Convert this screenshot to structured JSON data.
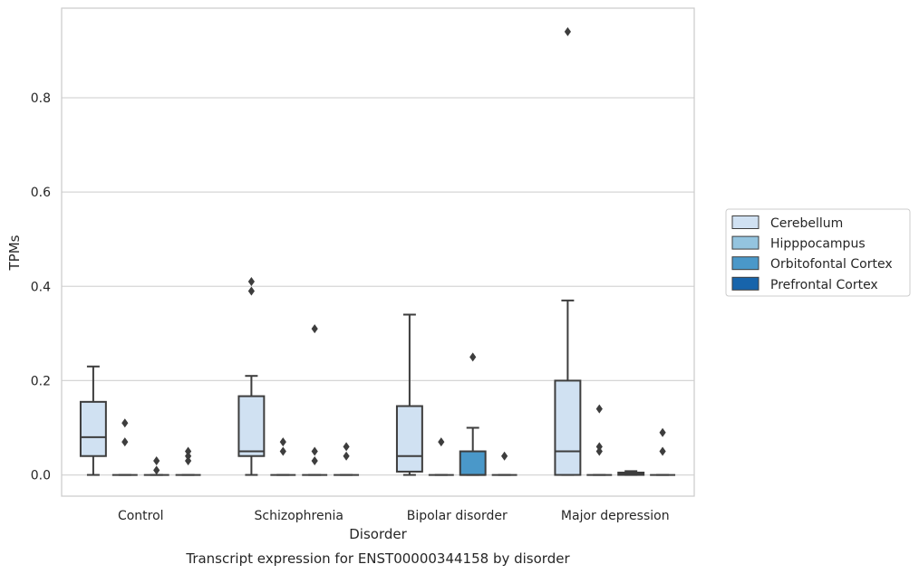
{
  "chart_data": {
    "type": "boxplot",
    "title": "Transcript expression for ENST00000344158 by disorder",
    "xlabel": "Disorder",
    "ylabel": "TPMs",
    "ylim": [
      -0.045,
      0.99
    ],
    "yticks": [
      0.0,
      0.2,
      0.4,
      0.6,
      0.8
    ],
    "ytick_labels": [
      "0.0",
      "0.2",
      "0.4",
      "0.6",
      "0.8"
    ],
    "grid": "horizontal",
    "legend_position": "right",
    "categories": [
      "Control",
      "Schizophrenia",
      "Bipolar disorder",
      "Major depression"
    ],
    "series": [
      {
        "name": "Cerebellum",
        "color": "#d0e1f2",
        "boxes": [
          {
            "whislo": 0.0,
            "q1": 0.04,
            "med": 0.08,
            "q3": 0.155,
            "whishi": 0.23,
            "fliers": []
          },
          {
            "whislo": 0.0,
            "q1": 0.04,
            "med": 0.05,
            "q3": 0.167,
            "whishi": 0.21,
            "fliers": [
              0.41,
              0.39
            ]
          },
          {
            "whislo": 0.0,
            "q1": 0.007,
            "med": 0.04,
            "q3": 0.146,
            "whishi": 0.34,
            "fliers": []
          },
          {
            "whislo": 0.0,
            "q1": 0.0,
            "med": 0.05,
            "q3": 0.2,
            "whishi": 0.37,
            "fliers": [
              0.94
            ]
          }
        ]
      },
      {
        "name": "Hipppocampus",
        "color": "#94c4df",
        "boxes": [
          {
            "whislo": 0.0,
            "q1": 0.0,
            "med": 0.0,
            "q3": 0.0,
            "whishi": 0.0,
            "fliers": [
              0.11,
              0.07
            ]
          },
          {
            "whislo": 0.0,
            "q1": 0.0,
            "med": 0.0,
            "q3": 0.0,
            "whishi": 0.0,
            "fliers": [
              0.07,
              0.05
            ]
          },
          {
            "whislo": 0.0,
            "q1": 0.0,
            "med": 0.0,
            "q3": 0.0,
            "whishi": 0.0,
            "fliers": [
              0.07
            ]
          },
          {
            "whislo": 0.0,
            "q1": 0.0,
            "med": 0.0,
            "q3": 0.0,
            "whishi": 0.0,
            "fliers": [
              0.14,
              0.06,
              0.05
            ]
          }
        ]
      },
      {
        "name": "Orbitofontal Cortex",
        "color": "#4a98c9",
        "boxes": [
          {
            "whislo": 0.0,
            "q1": 0.0,
            "med": 0.0,
            "q3": 0.0,
            "whishi": 0.0,
            "fliers": [
              0.03,
              0.01
            ]
          },
          {
            "whislo": 0.0,
            "q1": 0.0,
            "med": 0.0,
            "q3": 0.0,
            "whishi": 0.0,
            "fliers": [
              0.31,
              0.05,
              0.03
            ]
          },
          {
            "whislo": 0.0,
            "q1": 0.0,
            "med": 0.0,
            "q3": 0.05,
            "whishi": 0.1,
            "fliers": [
              0.25
            ]
          },
          {
            "whislo": 0.0,
            "q1": 0.0,
            "med": 0.002,
            "q3": 0.005,
            "whishi": 0.008,
            "fliers": []
          }
        ]
      },
      {
        "name": "Prefrontal Cortex",
        "color": "#1764ab",
        "boxes": [
          {
            "whislo": 0.0,
            "q1": 0.0,
            "med": 0.0,
            "q3": 0.0,
            "whishi": 0.0,
            "fliers": [
              0.05,
              0.04,
              0.03
            ]
          },
          {
            "whislo": 0.0,
            "q1": 0.0,
            "med": 0.0,
            "q3": 0.0,
            "whishi": 0.0,
            "fliers": [
              0.06,
              0.04
            ]
          },
          {
            "whislo": 0.0,
            "q1": 0.0,
            "med": 0.0,
            "q3": 0.0,
            "whishi": 0.0,
            "fliers": [
              0.04
            ]
          },
          {
            "whislo": 0.0,
            "q1": 0.0,
            "med": 0.0,
            "q3": 0.0,
            "whishi": 0.0,
            "fliers": [
              0.09,
              0.05
            ]
          }
        ]
      }
    ]
  }
}
